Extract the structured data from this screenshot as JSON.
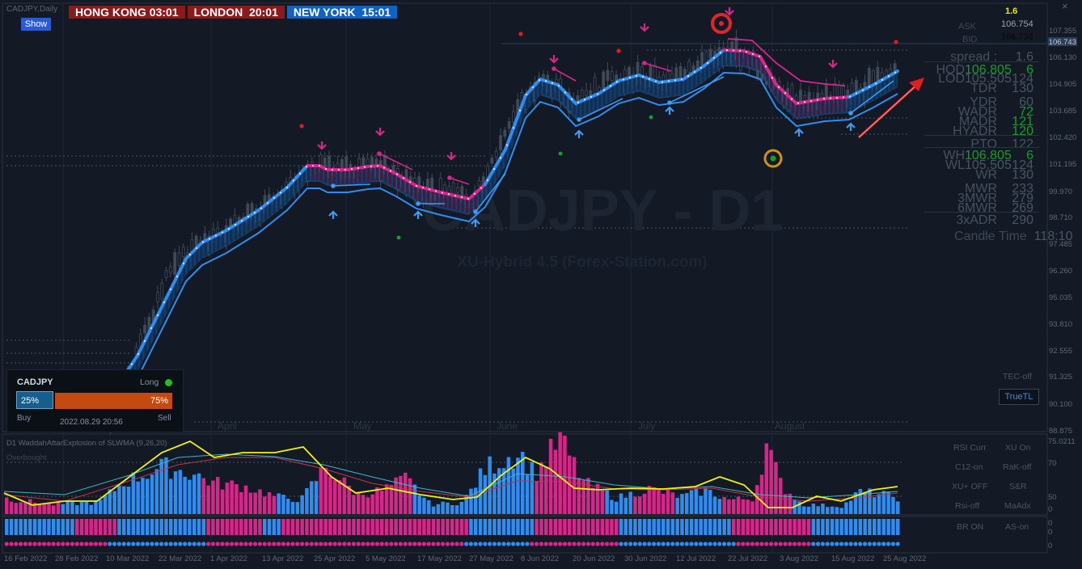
{
  "chart_title": "CADJPY,Daily",
  "sessions": [
    {
      "label": "HONG KONG",
      "time": "03:01",
      "bg": "#8b1b1b"
    },
    {
      "label": "LONDON",
      "time": "20:01",
      "bg": "#8b1b1b"
    },
    {
      "label": "NEW YORK",
      "time": "15:01",
      "bg": "#0f63c7"
    }
  ],
  "show_button": "Show",
  "watermark": {
    "symbol": "CADJPY - D1",
    "subtitle": "XU-Hybrid 4.5 (Forex-Station.com)"
  },
  "price_axis": [
    "107.355",
    "106.130",
    "104.905",
    "103.685",
    "102.420",
    "101.195",
    "99.970",
    "98.710",
    "97.485",
    "96.260",
    "95.035",
    "93.810",
    "92.555",
    "91.325",
    "90.100",
    "88.875"
  ],
  "current_price": "106.743",
  "info_panel": {
    "spread_top": "1.6",
    "ask_label": "ASK",
    "ask": "106.754",
    "bid_label": "BID",
    "bid": "106.738",
    "spread_label": "spread :",
    "spread": "1.6",
    "hod_label": "HOD",
    "hod": "106.805",
    "hod_pips": "6",
    "lod_label": "LOD",
    "lod": "105.505",
    "lod_pips": "124",
    "tdr_label": "TDR",
    "tdr": "130",
    "ydr_label": "YDR",
    "ydr": "60",
    "wadr_label": "WADR",
    "wadr": "72",
    "madr_label": "MADR",
    "madr": "121",
    "hyadr_label": "HYADR",
    "hyadr": "120",
    "pto_label": "PTO",
    "pto": "122",
    "wh_label": "WH",
    "wh": "106.805",
    "wh_pips": "6",
    "wl_label": "WL",
    "wl": "105.505",
    "wl_pips": "124",
    "wr_label": "WR",
    "wr": "130",
    "mwr_label": "MWR",
    "mwr": "233",
    "mwr3_label": "3MWR",
    "mwr3": "279",
    "mwr6_label": "6MWR",
    "mwr6": "269",
    "adr3_label": "3xADR",
    "adr3": "290",
    "candle_label": "Candle Time",
    "candle_time": "118:10"
  },
  "sentiment": {
    "symbol": "CADJPY",
    "direction": "Long",
    "buy_pct": "25%",
    "sell_pct": "75%",
    "buy_label": "Buy",
    "sell_label": "Sell",
    "timestamp": "2022.08.29 20:56"
  },
  "month_labels": [
    "April",
    "May",
    "June",
    "July",
    "August"
  ],
  "right_buttons": {
    "tec": "TEC-off",
    "truetl": "TrueTL",
    "rsi_curr": "RSI Curr",
    "xu_on": "XU On",
    "c12": "C12-on",
    "rak": "RaK-off",
    "xu_plus": "XU+ OFF",
    "sr": "S&R",
    "rsi_off": "Rsi-off",
    "maadx": "MaAdx",
    "br": "BR ON",
    "as": "AS-on"
  },
  "indicator": {
    "title": "D1 WaddahAttarExplosion of SLWMA (9,26,20)",
    "overbought": "Overbought",
    "axis_top": "75.0211",
    "axis": [
      "70",
      "50",
      "0"
    ],
    "strip_axis": [
      "0",
      "0",
      "0"
    ]
  },
  "date_axis": [
    "16 Feb 2022",
    "28 Feb 2022",
    "10 Mar 2022",
    "22 Mar 2022",
    "1 Apr 2022",
    "13 Apr 2022",
    "25 Apr 2022",
    "5 May 2022",
    "17 May 2022",
    "27 May 2022",
    "8 Jun 2022",
    "20 Jun 2022",
    "30 Jun 2022",
    "12 Jul 2022",
    "22 Jul 2022",
    "3 Aug 2022",
    "15 Aug 2022",
    "25 Aug 2022"
  ],
  "colors": {
    "bull": "#2f8df0",
    "bear": "#d9258a",
    "ma_yellow": "#f2f20a",
    "accent_red": "#e11d1d"
  }
}
